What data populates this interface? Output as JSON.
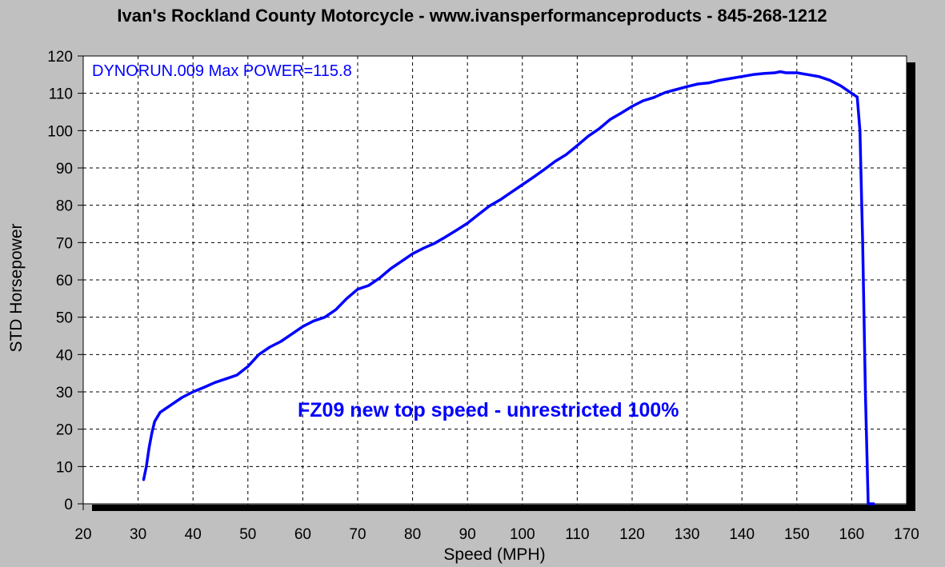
{
  "chart_data": {
    "type": "line",
    "title": "Ivan's Rockland County Motorcycle - www.ivansperformanceproducts - 845-268-1212",
    "xlabel": "Speed (MPH)",
    "ylabel": "STD Horsepower",
    "xlim": [
      20,
      170
    ],
    "ylim": [
      0,
      120
    ],
    "x_ticks": [
      20,
      30,
      40,
      50,
      60,
      70,
      80,
      90,
      100,
      110,
      120,
      130,
      140,
      150,
      160,
      170
    ],
    "y_ticks": [
      0,
      10,
      20,
      30,
      40,
      50,
      60,
      70,
      80,
      90,
      100,
      110,
      120
    ],
    "grid": true,
    "run_label": "DYNORUN.009  Max POWER=115.8",
    "annotation": "FZ09 new top speed - unrestricted 100%",
    "series": [
      {
        "name": "STD Horsepower",
        "color": "#0000ff",
        "x": [
          31,
          31.5,
          32,
          32.5,
          33,
          34,
          35,
          36,
          38,
          40,
          42,
          44,
          46,
          48,
          50,
          52,
          54,
          56,
          58,
          60,
          62,
          64,
          66,
          68,
          70,
          72,
          74,
          76,
          78,
          80,
          82,
          84,
          86,
          88,
          90,
          92,
          94,
          96,
          98,
          100,
          102,
          104,
          106,
          108,
          110,
          112,
          114,
          116,
          118,
          120,
          122,
          124,
          126,
          128,
          130,
          132,
          134,
          136,
          138,
          140,
          142,
          144,
          146,
          147,
          148,
          150,
          152,
          154,
          156,
          158,
          160,
          161,
          161.5,
          162,
          162.5,
          163,
          163.5,
          164
        ],
        "values": [
          6.5,
          10,
          15,
          19,
          22,
          24.5,
          25.5,
          26.5,
          28.5,
          30,
          31.2,
          32.5,
          33.5,
          34.5,
          36.8,
          40,
          42,
          43.5,
          45.5,
          47.5,
          49,
          50,
          52,
          55,
          57.5,
          58.5,
          60.5,
          63,
          65,
          67,
          68.5,
          69.8,
          71.5,
          73.3,
          75.2,
          77.5,
          79.8,
          81.5,
          83.5,
          85.5,
          87.5,
          89.6,
          91.8,
          93.6,
          96,
          98.5,
          100.5,
          103,
          104.7,
          106.5,
          108,
          108.9,
          110.2,
          111,
          111.8,
          112.5,
          112.8,
          113.5,
          114,
          114.5,
          115,
          115.3,
          115.5,
          115.8,
          115.5,
          115.5,
          115,
          114.5,
          113.5,
          112,
          110,
          109,
          100,
          70,
          30,
          0,
          0,
          0
        ]
      }
    ]
  }
}
